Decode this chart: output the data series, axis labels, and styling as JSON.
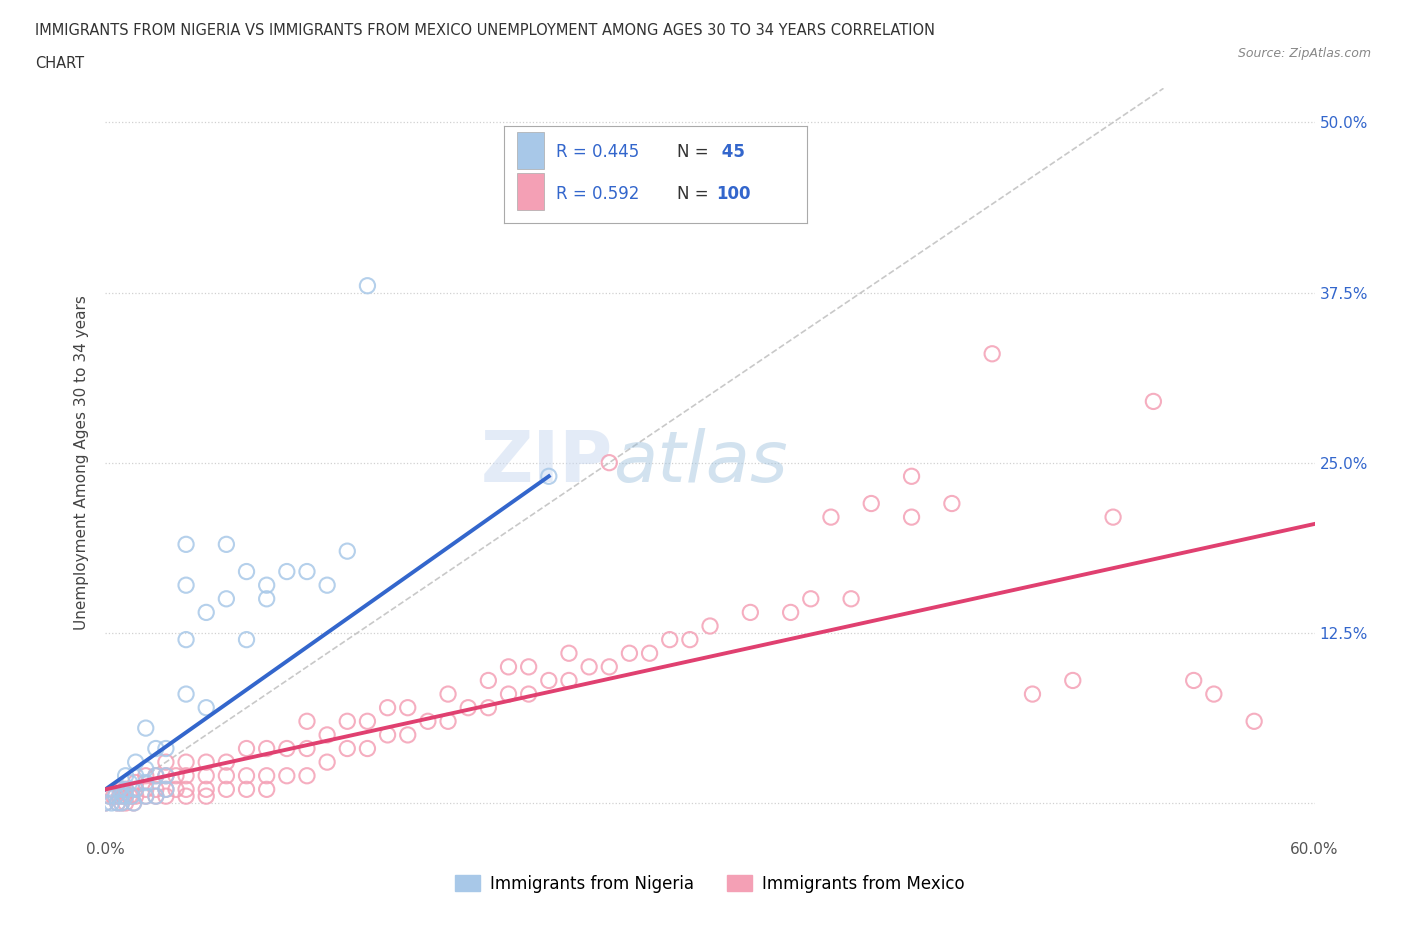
{
  "title_line1": "IMMIGRANTS FROM NIGERIA VS IMMIGRANTS FROM MEXICO UNEMPLOYMENT AMONG AGES 30 TO 34 YEARS CORRELATION",
  "title_line2": "CHART",
  "source": "Source: ZipAtlas.com",
  "ylabel": "Unemployment Among Ages 30 to 34 years",
  "xmin": 0.0,
  "xmax": 0.6,
  "ymin": -0.025,
  "ymax": 0.525,
  "yticks": [
    0.0,
    0.125,
    0.25,
    0.375,
    0.5
  ],
  "ytick_labels": [
    "",
    "12.5%",
    "25.0%",
    "37.5%",
    "50.0%"
  ],
  "xticks": [
    0.0,
    0.1,
    0.2,
    0.3,
    0.4,
    0.5,
    0.6
  ],
  "xtick_labels": [
    "0.0%",
    "",
    "",
    "",
    "",
    "",
    "60.0%"
  ],
  "nigeria_color": "#a8c8e8",
  "mexico_color": "#f4a0b5",
  "nigeria_line_color": "#3366cc",
  "mexico_line_color": "#e04070",
  "diagonal_color": "#bbbbbb",
  "watermark_zip": "ZIP",
  "watermark_atlas": "atlas",
  "nigeria_R": 0.445,
  "nigeria_N": 45,
  "mexico_R": 0.592,
  "mexico_N": 100,
  "nigeria_scatter": [
    [
      0.0,
      0.0
    ],
    [
      0.002,
      0.005
    ],
    [
      0.003,
      0.0
    ],
    [
      0.005,
      0.005
    ],
    [
      0.006,
      0.0
    ],
    [
      0.007,
      0.01
    ],
    [
      0.008,
      0.005
    ],
    [
      0.008,
      0.0
    ],
    [
      0.01,
      0.005
    ],
    [
      0.01,
      0.01
    ],
    [
      0.01,
      0.02
    ],
    [
      0.012,
      0.015
    ],
    [
      0.013,
      0.005
    ],
    [
      0.014,
      0.0
    ],
    [
      0.015,
      0.01
    ],
    [
      0.015,
      0.02
    ],
    [
      0.015,
      0.03
    ],
    [
      0.02,
      0.005
    ],
    [
      0.02,
      0.015
    ],
    [
      0.02,
      0.025
    ],
    [
      0.02,
      0.055
    ],
    [
      0.025,
      0.005
    ],
    [
      0.025,
      0.02
    ],
    [
      0.025,
      0.04
    ],
    [
      0.03,
      0.01
    ],
    [
      0.03,
      0.02
    ],
    [
      0.03,
      0.04
    ],
    [
      0.04,
      0.08
    ],
    [
      0.04,
      0.12
    ],
    [
      0.04,
      0.16
    ],
    [
      0.04,
      0.19
    ],
    [
      0.05,
      0.07
    ],
    [
      0.05,
      0.14
    ],
    [
      0.06,
      0.15
    ],
    [
      0.06,
      0.19
    ],
    [
      0.07,
      0.12
    ],
    [
      0.07,
      0.17
    ],
    [
      0.08,
      0.15
    ],
    [
      0.08,
      0.16
    ],
    [
      0.09,
      0.17
    ],
    [
      0.1,
      0.17
    ],
    [
      0.11,
      0.16
    ],
    [
      0.12,
      0.185
    ],
    [
      0.22,
      0.24
    ],
    [
      0.13,
      0.38
    ]
  ],
  "mexico_scatter": [
    [
      0.0,
      0.0
    ],
    [
      0.002,
      0.005
    ],
    [
      0.004,
      0.005
    ],
    [
      0.005,
      0.005
    ],
    [
      0.006,
      0.0
    ],
    [
      0.007,
      0.005
    ],
    [
      0.008,
      0.0
    ],
    [
      0.008,
      0.01
    ],
    [
      0.009,
      0.005
    ],
    [
      0.01,
      0.0
    ],
    [
      0.01,
      0.005
    ],
    [
      0.01,
      0.01
    ],
    [
      0.012,
      0.005
    ],
    [
      0.013,
      0.005
    ],
    [
      0.014,
      0.0
    ],
    [
      0.015,
      0.005
    ],
    [
      0.015,
      0.01
    ],
    [
      0.015,
      0.015
    ],
    [
      0.02,
      0.005
    ],
    [
      0.02,
      0.01
    ],
    [
      0.02,
      0.02
    ],
    [
      0.025,
      0.005
    ],
    [
      0.025,
      0.01
    ],
    [
      0.025,
      0.02
    ],
    [
      0.03,
      0.005
    ],
    [
      0.03,
      0.01
    ],
    [
      0.03,
      0.02
    ],
    [
      0.03,
      0.03
    ],
    [
      0.035,
      0.01
    ],
    [
      0.035,
      0.02
    ],
    [
      0.04,
      0.005
    ],
    [
      0.04,
      0.01
    ],
    [
      0.04,
      0.02
    ],
    [
      0.04,
      0.03
    ],
    [
      0.05,
      0.005
    ],
    [
      0.05,
      0.01
    ],
    [
      0.05,
      0.02
    ],
    [
      0.05,
      0.03
    ],
    [
      0.06,
      0.01
    ],
    [
      0.06,
      0.02
    ],
    [
      0.06,
      0.03
    ],
    [
      0.07,
      0.01
    ],
    [
      0.07,
      0.02
    ],
    [
      0.07,
      0.04
    ],
    [
      0.08,
      0.01
    ],
    [
      0.08,
      0.02
    ],
    [
      0.08,
      0.04
    ],
    [
      0.09,
      0.02
    ],
    [
      0.09,
      0.04
    ],
    [
      0.1,
      0.02
    ],
    [
      0.1,
      0.04
    ],
    [
      0.1,
      0.06
    ],
    [
      0.11,
      0.03
    ],
    [
      0.11,
      0.05
    ],
    [
      0.12,
      0.04
    ],
    [
      0.12,
      0.06
    ],
    [
      0.13,
      0.04
    ],
    [
      0.13,
      0.06
    ],
    [
      0.14,
      0.05
    ],
    [
      0.14,
      0.07
    ],
    [
      0.15,
      0.05
    ],
    [
      0.15,
      0.07
    ],
    [
      0.16,
      0.06
    ],
    [
      0.17,
      0.06
    ],
    [
      0.17,
      0.08
    ],
    [
      0.18,
      0.07
    ],
    [
      0.19,
      0.07
    ],
    [
      0.19,
      0.09
    ],
    [
      0.2,
      0.08
    ],
    [
      0.2,
      0.1
    ],
    [
      0.21,
      0.08
    ],
    [
      0.21,
      0.1
    ],
    [
      0.22,
      0.09
    ],
    [
      0.23,
      0.09
    ],
    [
      0.23,
      0.11
    ],
    [
      0.24,
      0.1
    ],
    [
      0.25,
      0.1
    ],
    [
      0.25,
      0.25
    ],
    [
      0.26,
      0.11
    ],
    [
      0.27,
      0.11
    ],
    [
      0.28,
      0.12
    ],
    [
      0.29,
      0.12
    ],
    [
      0.3,
      0.13
    ],
    [
      0.32,
      0.14
    ],
    [
      0.34,
      0.14
    ],
    [
      0.35,
      0.15
    ],
    [
      0.36,
      0.21
    ],
    [
      0.37,
      0.15
    ],
    [
      0.38,
      0.22
    ],
    [
      0.4,
      0.21
    ],
    [
      0.4,
      0.24
    ],
    [
      0.42,
      0.22
    ],
    [
      0.44,
      0.33
    ],
    [
      0.46,
      0.08
    ],
    [
      0.48,
      0.09
    ],
    [
      0.5,
      0.21
    ],
    [
      0.52,
      0.295
    ],
    [
      0.54,
      0.09
    ],
    [
      0.55,
      0.08
    ],
    [
      0.57,
      0.06
    ]
  ],
  "nigeria_trend_x": [
    0.0,
    0.22
  ],
  "nigeria_trend_y": [
    0.01,
    0.24
  ],
  "mexico_trend_x": [
    0.0,
    0.6
  ],
  "mexico_trend_y": [
    0.01,
    0.205
  ],
  "background_color": "#ffffff",
  "grid_color": "#cccccc",
  "text_color_blue": "#3366cc",
  "tick_label_color_right": "#3366cc",
  "legend_R_color": "#3366cc",
  "legend_N_color": "#3366cc"
}
